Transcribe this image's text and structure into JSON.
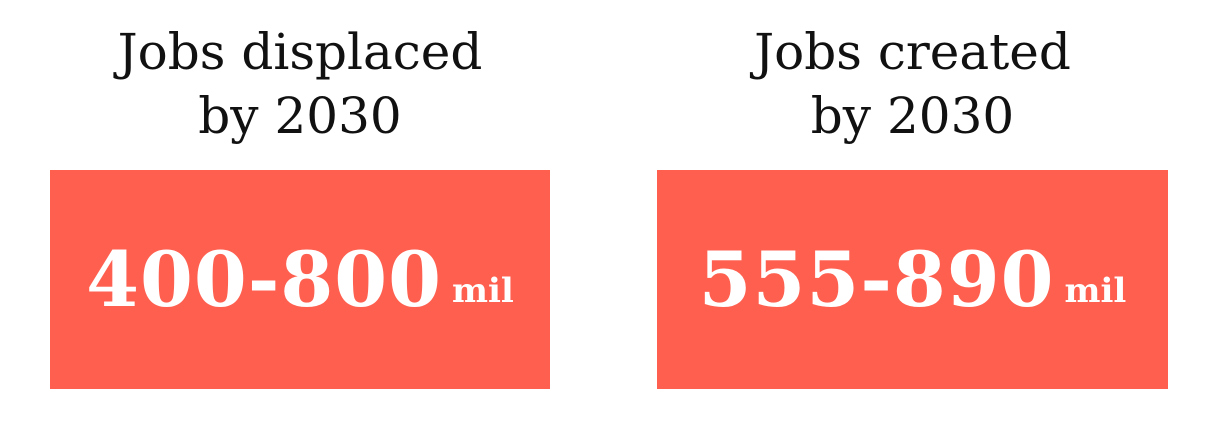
{
  "colors": {
    "box": "#ff5f4f",
    "heading_text": "#111111",
    "box_text": "#ffffff"
  },
  "stats": [
    {
      "heading_line1": "Jobs displaced",
      "heading_line2": "by 2030",
      "value": "400-800",
      "unit": "mil"
    },
    {
      "heading_line1": "Jobs created",
      "heading_line2": "by 2030",
      "value": "555-890",
      "unit": "mil"
    }
  ]
}
